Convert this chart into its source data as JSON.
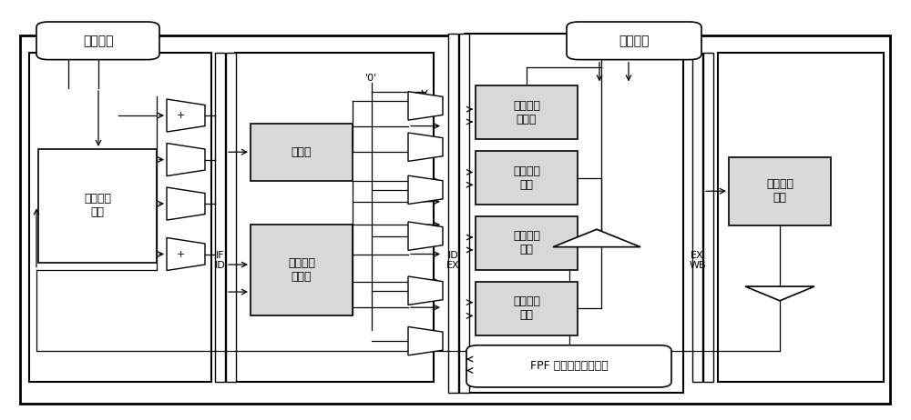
{
  "bg_color": "#ffffff",
  "line_color": "#000000",
  "box_fill_gray": "#d8d8d8",
  "font_size": 9,
  "labels": {
    "cmd_interface": "指令接口",
    "data_interface": "数据接口",
    "prefetch": "指令预取\n缓存",
    "decoder": "译码器",
    "regfile": "通用目的\n寄存器",
    "cur_state": "当前状态\n寄存器",
    "alu": "算数逻辑\n单元",
    "fixed_mult": "定点乘法\n单元",
    "dot_calc": "点乘计算\n单元",
    "fpf": "FPF 阵列卷积计算单元",
    "load_store": "加载存储\n单元",
    "if_id": "IF\nID",
    "id_ex": "ID\nEX",
    "ex_wb": "EX\nWB",
    "zero": "'0'"
  }
}
